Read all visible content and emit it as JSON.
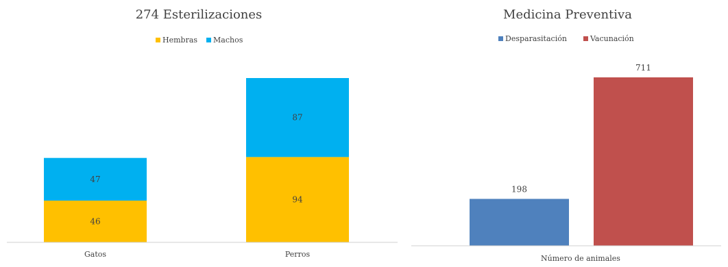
{
  "chart_data": [
    {
      "type": "bar",
      "stacked": true,
      "title": "274 Esterilizaciones",
      "categories": [
        "Gatos",
        "Perros"
      ],
      "series": [
        {
          "name": "Hembras",
          "values": [
            46,
            94
          ],
          "color": "#ffc000"
        },
        {
          "name": "Machos",
          "values": [
            47,
            87
          ],
          "color": "#00b0f0"
        }
      ],
      "xlabel": "",
      "ylabel": "",
      "ylim": [
        0,
        181
      ],
      "legend": "top",
      "grid": false
    },
    {
      "type": "bar",
      "stacked": false,
      "title": "Medicina Preventiva",
      "categories": [
        "Número de animales"
      ],
      "series": [
        {
          "name": "Desparasitación",
          "values": [
            198
          ],
          "color": "#4f81bd"
        },
        {
          "name": "Vacunación",
          "values": [
            711
          ],
          "color": "#c0504d"
        }
      ],
      "xlabel": "",
      "ylabel": "",
      "ylim": [
        0,
        711
      ],
      "legend": "top",
      "grid": false
    }
  ]
}
